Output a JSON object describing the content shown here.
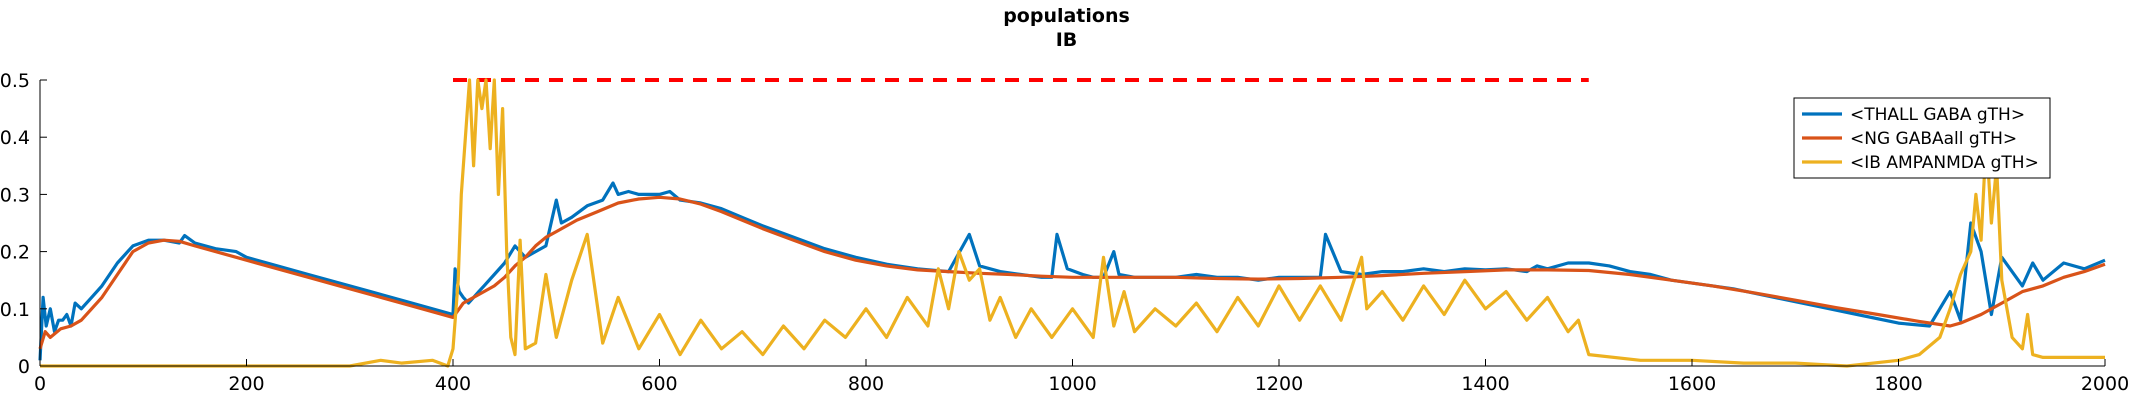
{
  "chart_data": {
    "type": "line",
    "title": "populations",
    "subtitle": "IB",
    "xlabel": "",
    "ylabel": "",
    "xlim": [
      0,
      2000
    ],
    "ylim": [
      0,
      0.5
    ],
    "x_ticks": [
      0,
      200,
      400,
      600,
      800,
      1000,
      1200,
      1400,
      1600,
      1800,
      2000
    ],
    "y_ticks": [
      0,
      0.1,
      0.2,
      0.3,
      0.4,
      0.5
    ],
    "y_tick_labels": [
      "0",
      "0.1",
      "0.2",
      "0.3",
      "0.4",
      "0.5"
    ],
    "grid": false,
    "legend_position": "top-right",
    "reference_line": {
      "y": 0.5,
      "x_range": [
        400,
        1500
      ],
      "color": "#ff0000",
      "style": "dashed"
    },
    "series": [
      {
        "name": "<THALL GABA gTH>",
        "color": "#0072bd",
        "x": [
          0,
          3,
          6,
          10,
          14,
          18,
          22,
          26,
          30,
          34,
          40,
          50,
          60,
          75,
          90,
          105,
          120,
          135,
          140,
          150,
          170,
          190,
          200,
          230,
          260,
          290,
          320,
          350,
          380,
          400,
          402,
          406,
          410,
          415,
          420,
          425,
          430,
          440,
          450,
          460,
          470,
          480,
          490,
          500,
          505,
          515,
          530,
          545,
          555,
          560,
          570,
          580,
          600,
          610,
          620,
          640,
          660,
          680,
          700,
          730,
          760,
          790,
          820,
          850,
          880,
          900,
          910,
          930,
          950,
          970,
          980,
          985,
          995,
          1010,
          1020,
          1030,
          1040,
          1045,
          1060,
          1080,
          1100,
          1120,
          1140,
          1160,
          1180,
          1200,
          1220,
          1240,
          1245,
          1260,
          1280,
          1300,
          1320,
          1340,
          1360,
          1380,
          1400,
          1420,
          1440,
          1450,
          1460,
          1480,
          1500,
          1520,
          1540,
          1560,
          1580,
          1600,
          1640,
          1680,
          1720,
          1760,
          1800,
          1830,
          1850,
          1860,
          1870,
          1880,
          1890,
          1900,
          1920,
          1930,
          1940,
          1960,
          1980,
          2000
        ],
        "y": [
          0.01,
          0.12,
          0.07,
          0.1,
          0.06,
          0.08,
          0.08,
          0.09,
          0.07,
          0.11,
          0.1,
          0.12,
          0.14,
          0.18,
          0.21,
          0.22,
          0.22,
          0.215,
          0.228,
          0.215,
          0.205,
          0.2,
          0.19,
          0.175,
          0.16,
          0.145,
          0.13,
          0.115,
          0.1,
          0.09,
          0.17,
          0.13,
          0.12,
          0.11,
          0.12,
          0.13,
          0.14,
          0.16,
          0.18,
          0.21,
          0.19,
          0.2,
          0.21,
          0.29,
          0.25,
          0.26,
          0.28,
          0.29,
          0.32,
          0.3,
          0.305,
          0.3,
          0.3,
          0.305,
          0.29,
          0.285,
          0.275,
          0.26,
          0.245,
          0.225,
          0.205,
          0.19,
          0.178,
          0.17,
          0.165,
          0.23,
          0.175,
          0.165,
          0.16,
          0.155,
          0.155,
          0.23,
          0.17,
          0.16,
          0.155,
          0.155,
          0.2,
          0.16,
          0.155,
          0.155,
          0.155,
          0.16,
          0.155,
          0.155,
          0.15,
          0.155,
          0.155,
          0.155,
          0.23,
          0.165,
          0.16,
          0.165,
          0.165,
          0.17,
          0.165,
          0.17,
          0.168,
          0.17,
          0.165,
          0.175,
          0.17,
          0.18,
          0.18,
          0.175,
          0.165,
          0.16,
          0.15,
          0.145,
          0.135,
          0.12,
          0.105,
          0.09,
          0.075,
          0.07,
          0.13,
          0.08,
          0.25,
          0.2,
          0.09,
          0.19,
          0.14,
          0.18,
          0.15,
          0.18,
          0.17,
          0.185
        ]
      },
      {
        "name": "<NG GABAall gTH>",
        "color": "#d95319",
        "x": [
          0,
          5,
          10,
          20,
          30,
          40,
          50,
          60,
          75,
          90,
          105,
          120,
          135,
          150,
          170,
          190,
          200,
          230,
          260,
          290,
          320,
          350,
          380,
          400,
          410,
          420,
          430,
          440,
          450,
          460,
          470,
          480,
          490,
          500,
          520,
          540,
          560,
          580,
          600,
          620,
          640,
          660,
          680,
          700,
          730,
          760,
          790,
          820,
          850,
          880,
          910,
          940,
          970,
          1000,
          1030,
          1060,
          1100,
          1140,
          1180,
          1220,
          1260,
          1300,
          1340,
          1380,
          1420,
          1460,
          1500,
          1540,
          1580,
          1620,
          1660,
          1700,
          1740,
          1780,
          1820,
          1850,
          1860,
          1880,
          1900,
          1920,
          1940,
          1960,
          1980,
          2000
        ],
        "y": [
          0.03,
          0.06,
          0.05,
          0.065,
          0.07,
          0.08,
          0.1,
          0.12,
          0.16,
          0.2,
          0.215,
          0.22,
          0.218,
          0.21,
          0.2,
          0.19,
          0.185,
          0.17,
          0.155,
          0.14,
          0.125,
          0.11,
          0.095,
          0.085,
          0.11,
          0.12,
          0.13,
          0.14,
          0.155,
          0.175,
          0.19,
          0.21,
          0.225,
          0.235,
          0.255,
          0.27,
          0.285,
          0.292,
          0.295,
          0.292,
          0.283,
          0.27,
          0.255,
          0.24,
          0.22,
          0.2,
          0.185,
          0.175,
          0.168,
          0.165,
          0.162,
          0.16,
          0.157,
          0.155,
          0.155,
          0.155,
          0.155,
          0.153,
          0.152,
          0.153,
          0.155,
          0.158,
          0.162,
          0.165,
          0.168,
          0.168,
          0.167,
          0.16,
          0.15,
          0.14,
          0.128,
          0.115,
          0.102,
          0.09,
          0.078,
          0.07,
          0.075,
          0.09,
          0.11,
          0.13,
          0.14,
          0.155,
          0.165,
          0.178
        ]
      },
      {
        "name": "<IB AMPANMDA gTH>",
        "color": "#edb120",
        "x": [
          0,
          300,
          330,
          350,
          380,
          395,
          400,
          405,
          408,
          412,
          416,
          420,
          424,
          428,
          432,
          436,
          440,
          444,
          448,
          452,
          456,
          460,
          465,
          470,
          480,
          490,
          500,
          515,
          530,
          545,
          560,
          580,
          600,
          620,
          640,
          660,
          680,
          700,
          720,
          740,
          760,
          780,
          800,
          820,
          840,
          860,
          870,
          880,
          890,
          900,
          910,
          920,
          930,
          945,
          960,
          980,
          1000,
          1020,
          1030,
          1040,
          1050,
          1060,
          1080,
          1100,
          1120,
          1140,
          1160,
          1180,
          1200,
          1220,
          1240,
          1260,
          1280,
          1285,
          1300,
          1320,
          1340,
          1360,
          1380,
          1400,
          1420,
          1440,
          1460,
          1480,
          1490,
          1500,
          1550,
          1600,
          1650,
          1700,
          1750,
          1800,
          1820,
          1840,
          1850,
          1860,
          1870,
          1875,
          1880,
          1885,
          1890,
          1895,
          1900,
          1910,
          1920,
          1925,
          1930,
          1940,
          1960,
          1980,
          2000
        ],
        "y": [
          0.0,
          0.0,
          0.01,
          0.005,
          0.01,
          0.0,
          0.03,
          0.15,
          0.3,
          0.4,
          0.5,
          0.35,
          0.5,
          0.45,
          0.5,
          0.38,
          0.5,
          0.3,
          0.45,
          0.2,
          0.05,
          0.02,
          0.22,
          0.03,
          0.04,
          0.16,
          0.05,
          0.15,
          0.23,
          0.04,
          0.12,
          0.03,
          0.09,
          0.02,
          0.08,
          0.03,
          0.06,
          0.02,
          0.07,
          0.03,
          0.08,
          0.05,
          0.1,
          0.05,
          0.12,
          0.07,
          0.17,
          0.1,
          0.2,
          0.15,
          0.17,
          0.08,
          0.12,
          0.05,
          0.1,
          0.05,
          0.1,
          0.05,
          0.19,
          0.07,
          0.13,
          0.06,
          0.1,
          0.07,
          0.11,
          0.06,
          0.12,
          0.07,
          0.14,
          0.08,
          0.14,
          0.08,
          0.19,
          0.1,
          0.13,
          0.08,
          0.14,
          0.09,
          0.15,
          0.1,
          0.13,
          0.08,
          0.12,
          0.06,
          0.08,
          0.02,
          0.01,
          0.01,
          0.005,
          0.005,
          0.0,
          0.01,
          0.02,
          0.05,
          0.1,
          0.16,
          0.2,
          0.3,
          0.22,
          0.4,
          0.25,
          0.35,
          0.15,
          0.05,
          0.03,
          0.09,
          0.02,
          0.015,
          0.015,
          0.015,
          0.015
        ]
      }
    ]
  }
}
